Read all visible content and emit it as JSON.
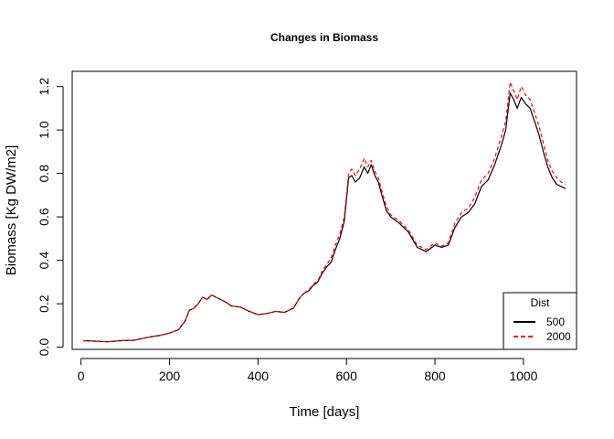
{
  "chart_data": {
    "type": "line",
    "title": "Changes in Biomass",
    "xlabel": "Time [days]",
    "ylabel": "Biomass [Kg DW/m2]",
    "xlim": [
      -20,
      1120
    ],
    "ylim": [
      -0.01,
      1.27
    ],
    "x_ticks": [
      0,
      200,
      400,
      600,
      800,
      1000
    ],
    "x_tick_labels": [
      "0",
      "200",
      "400",
      "600",
      "800",
      "1000"
    ],
    "y_ticks": [
      0.0,
      0.2,
      0.4,
      0.6,
      0.8,
      1.0,
      1.2
    ],
    "y_tick_labels": [
      "0.0",
      "0.2",
      "0.4",
      "0.6",
      "0.8",
      "1.0",
      "1.2"
    ],
    "grid": false,
    "legend": {
      "title": "Dist",
      "position": "bottom-right"
    },
    "series": [
      {
        "name": "500",
        "color": "#000000",
        "style": "solid",
        "x": [
          5,
          30,
          60,
          90,
          120,
          150,
          180,
          200,
          220,
          235,
          245,
          255,
          265,
          275,
          285,
          295,
          305,
          315,
          325,
          340,
          360,
          380,
          400,
          420,
          440,
          460,
          480,
          495,
          505,
          515,
          525,
          535,
          545,
          555,
          565,
          575,
          585,
          595,
          605,
          612,
          620,
          630,
          640,
          648,
          656,
          664,
          672,
          680,
          690,
          700,
          720,
          740,
          760,
          780,
          800,
          815,
          830,
          845,
          860,
          875,
          890,
          905,
          920,
          935,
          950,
          960,
          970,
          978,
          986,
          995,
          1005,
          1015,
          1025,
          1035,
          1045,
          1055,
          1065,
          1075,
          1085,
          1095
        ],
        "values": [
          0.03,
          0.028,
          0.025,
          0.03,
          0.032,
          0.045,
          0.055,
          0.065,
          0.08,
          0.12,
          0.17,
          0.18,
          0.2,
          0.23,
          0.22,
          0.24,
          0.23,
          0.22,
          0.21,
          0.19,
          0.185,
          0.165,
          0.15,
          0.155,
          0.165,
          0.16,
          0.18,
          0.23,
          0.25,
          0.26,
          0.285,
          0.3,
          0.34,
          0.37,
          0.39,
          0.45,
          0.5,
          0.58,
          0.78,
          0.79,
          0.76,
          0.78,
          0.83,
          0.8,
          0.84,
          0.79,
          0.76,
          0.7,
          0.63,
          0.6,
          0.57,
          0.53,
          0.46,
          0.44,
          0.47,
          0.46,
          0.47,
          0.55,
          0.6,
          0.62,
          0.66,
          0.74,
          0.77,
          0.84,
          0.93,
          1.0,
          1.17,
          1.14,
          1.1,
          1.15,
          1.12,
          1.1,
          1.04,
          0.98,
          0.9,
          0.83,
          0.78,
          0.75,
          0.74,
          0.73
        ]
      },
      {
        "name": "2000",
        "color": "#ff0000",
        "style": "dashed",
        "x": [
          5,
          30,
          60,
          90,
          120,
          150,
          180,
          200,
          220,
          235,
          245,
          255,
          265,
          275,
          285,
          295,
          305,
          315,
          325,
          340,
          360,
          380,
          400,
          420,
          440,
          460,
          480,
          495,
          505,
          515,
          525,
          535,
          545,
          555,
          565,
          575,
          585,
          595,
          605,
          612,
          620,
          630,
          640,
          648,
          656,
          664,
          672,
          680,
          690,
          700,
          720,
          740,
          760,
          780,
          800,
          815,
          830,
          845,
          860,
          875,
          890,
          905,
          920,
          935,
          950,
          960,
          970,
          978,
          986,
          995,
          1005,
          1015,
          1025,
          1035,
          1045,
          1055,
          1065,
          1075,
          1085,
          1095
        ],
        "values": [
          0.03,
          0.028,
          0.025,
          0.03,
          0.032,
          0.045,
          0.055,
          0.065,
          0.08,
          0.12,
          0.17,
          0.18,
          0.2,
          0.23,
          0.22,
          0.24,
          0.23,
          0.22,
          0.21,
          0.19,
          0.185,
          0.165,
          0.15,
          0.155,
          0.165,
          0.16,
          0.18,
          0.23,
          0.25,
          0.265,
          0.29,
          0.305,
          0.35,
          0.38,
          0.41,
          0.47,
          0.52,
          0.6,
          0.8,
          0.82,
          0.79,
          0.82,
          0.87,
          0.83,
          0.86,
          0.81,
          0.78,
          0.72,
          0.65,
          0.61,
          0.58,
          0.54,
          0.47,
          0.45,
          0.48,
          0.465,
          0.48,
          0.57,
          0.62,
          0.64,
          0.69,
          0.77,
          0.8,
          0.87,
          0.97,
          1.04,
          1.22,
          1.18,
          1.14,
          1.2,
          1.16,
          1.14,
          1.08,
          1.02,
          0.94,
          0.86,
          0.81,
          0.78,
          0.76,
          0.75
        ]
      }
    ]
  }
}
